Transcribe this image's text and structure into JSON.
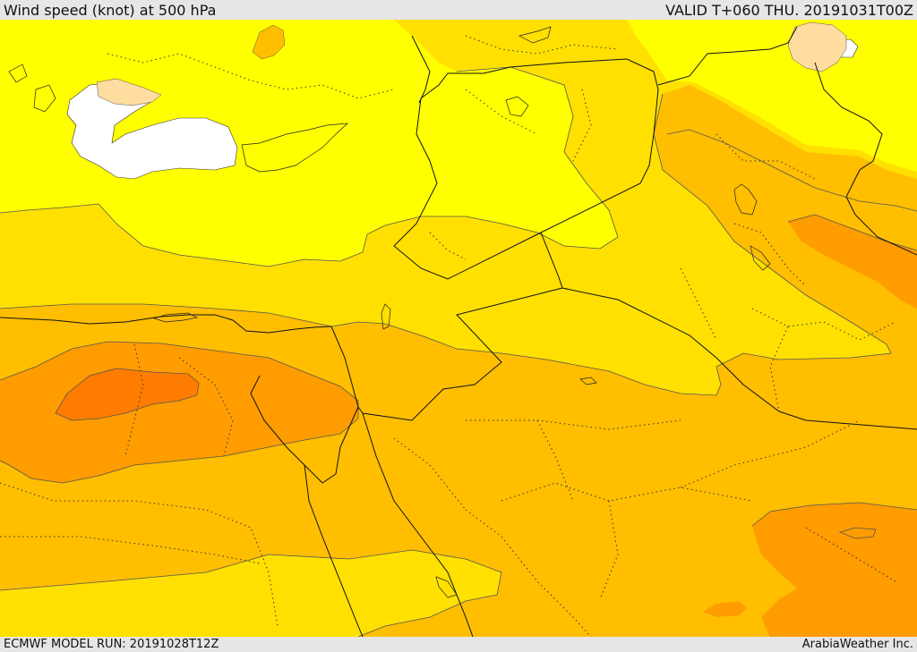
{
  "header": {
    "title": "Wind speed (knot) at 500 hPa",
    "valid": "VALID T+060 THU. 20191031T00Z"
  },
  "footer": {
    "model_run": "ECMWF MODEL RUN: 20191028T12Z",
    "credit": "ArabiaWeather Inc."
  },
  "colors": {
    "below_range": "#ffffff",
    "shade_1": "#ffdca0",
    "shade_2": "#ffff00",
    "shade_3": "#ffe000",
    "shade_4": "#ffbe00",
    "shade_5": "#ff9c00",
    "shade_6": "#ff7c00"
  }
}
